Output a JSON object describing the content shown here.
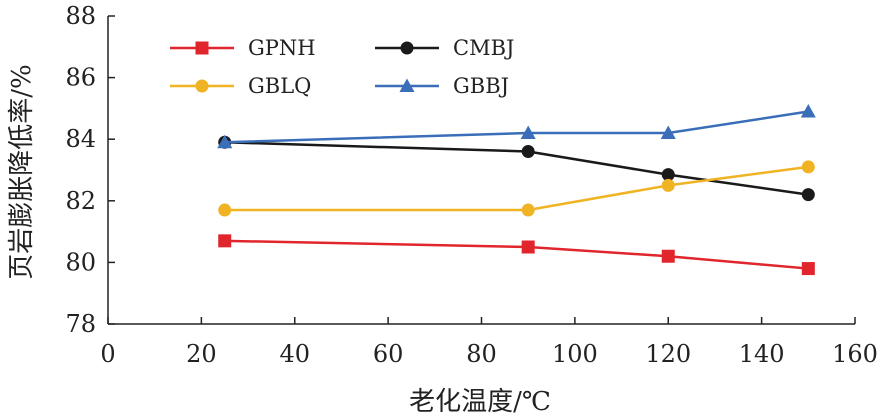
{
  "chart_data": {
    "type": "line",
    "xlabel": "老化温度/℃",
    "ylabel": "页岩膨胀降低率/%",
    "xlim": [
      0,
      160
    ],
    "ylim": [
      78,
      88
    ],
    "x_ticks": [
      "0",
      "20",
      "40",
      "60",
      "80",
      "100",
      "120",
      "140",
      "160"
    ],
    "y_ticks": [
      "78",
      "80",
      "82",
      "84",
      "86",
      "88"
    ],
    "x": [
      25,
      90,
      120,
      150
    ],
    "grid": false,
    "legend_position": "top-left",
    "series": [
      {
        "name": "GPNH",
        "values": [
          80.7,
          80.5,
          80.2,
          79.8
        ],
        "color": "#e0262c",
        "marker": "square"
      },
      {
        "name": "CMBJ",
        "values": [
          83.9,
          83.6,
          82.85,
          82.2
        ],
        "color": "#1a1a1a",
        "marker": "circle"
      },
      {
        "name": "GBLQ",
        "values": [
          81.7,
          81.7,
          82.5,
          83.1
        ],
        "color": "#f0b323",
        "marker": "circle"
      },
      {
        "name": "GBBJ",
        "values": [
          83.9,
          84.2,
          84.2,
          84.9
        ],
        "color": "#3a6eb8",
        "marker": "triangle"
      }
    ]
  }
}
